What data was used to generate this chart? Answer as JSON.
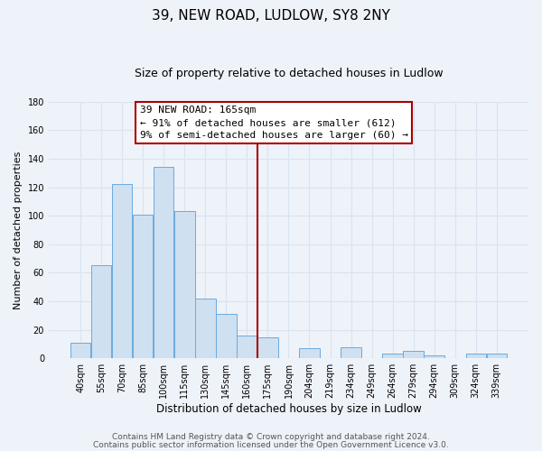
{
  "title": "39, NEW ROAD, LUDLOW, SY8 2NY",
  "subtitle": "Size of property relative to detached houses in Ludlow",
  "xlabel": "Distribution of detached houses by size in Ludlow",
  "ylabel": "Number of detached properties",
  "bar_labels": [
    "40sqm",
    "55sqm",
    "70sqm",
    "85sqm",
    "100sqm",
    "115sqm",
    "130sqm",
    "145sqm",
    "160sqm",
    "175sqm",
    "190sqm",
    "204sqm",
    "219sqm",
    "234sqm",
    "249sqm",
    "264sqm",
    "279sqm",
    "294sqm",
    "309sqm",
    "324sqm",
    "339sqm"
  ],
  "bar_heights": [
    11,
    65,
    122,
    101,
    134,
    103,
    42,
    31,
    16,
    15,
    0,
    7,
    0,
    8,
    0,
    3,
    5,
    2,
    0,
    3,
    3
  ],
  "bar_color": "#cfe0f0",
  "bar_edge_color": "#6aabe0",
  "vline_color": "#aa0000",
  "ylim": [
    0,
    180
  ],
  "yticks": [
    0,
    20,
    40,
    60,
    80,
    100,
    120,
    140,
    160,
    180
  ],
  "annotation_title": "39 NEW ROAD: 165sqm",
  "annotation_line1": "← 91% of detached houses are smaller (612)",
  "annotation_line2": "9% of semi-detached houses are larger (60) →",
  "footer_line1": "Contains HM Land Registry data © Crown copyright and database right 2024.",
  "footer_line2": "Contains public sector information licensed under the Open Government Licence v3.0.",
  "background_color": "#eef2f9",
  "grid_color": "#d8e4f0",
  "title_fontsize": 11,
  "subtitle_fontsize": 9,
  "xlabel_fontsize": 8.5,
  "ylabel_fontsize": 8,
  "tick_fontsize": 7,
  "footer_fontsize": 6.5,
  "ann_fontsize": 8
}
